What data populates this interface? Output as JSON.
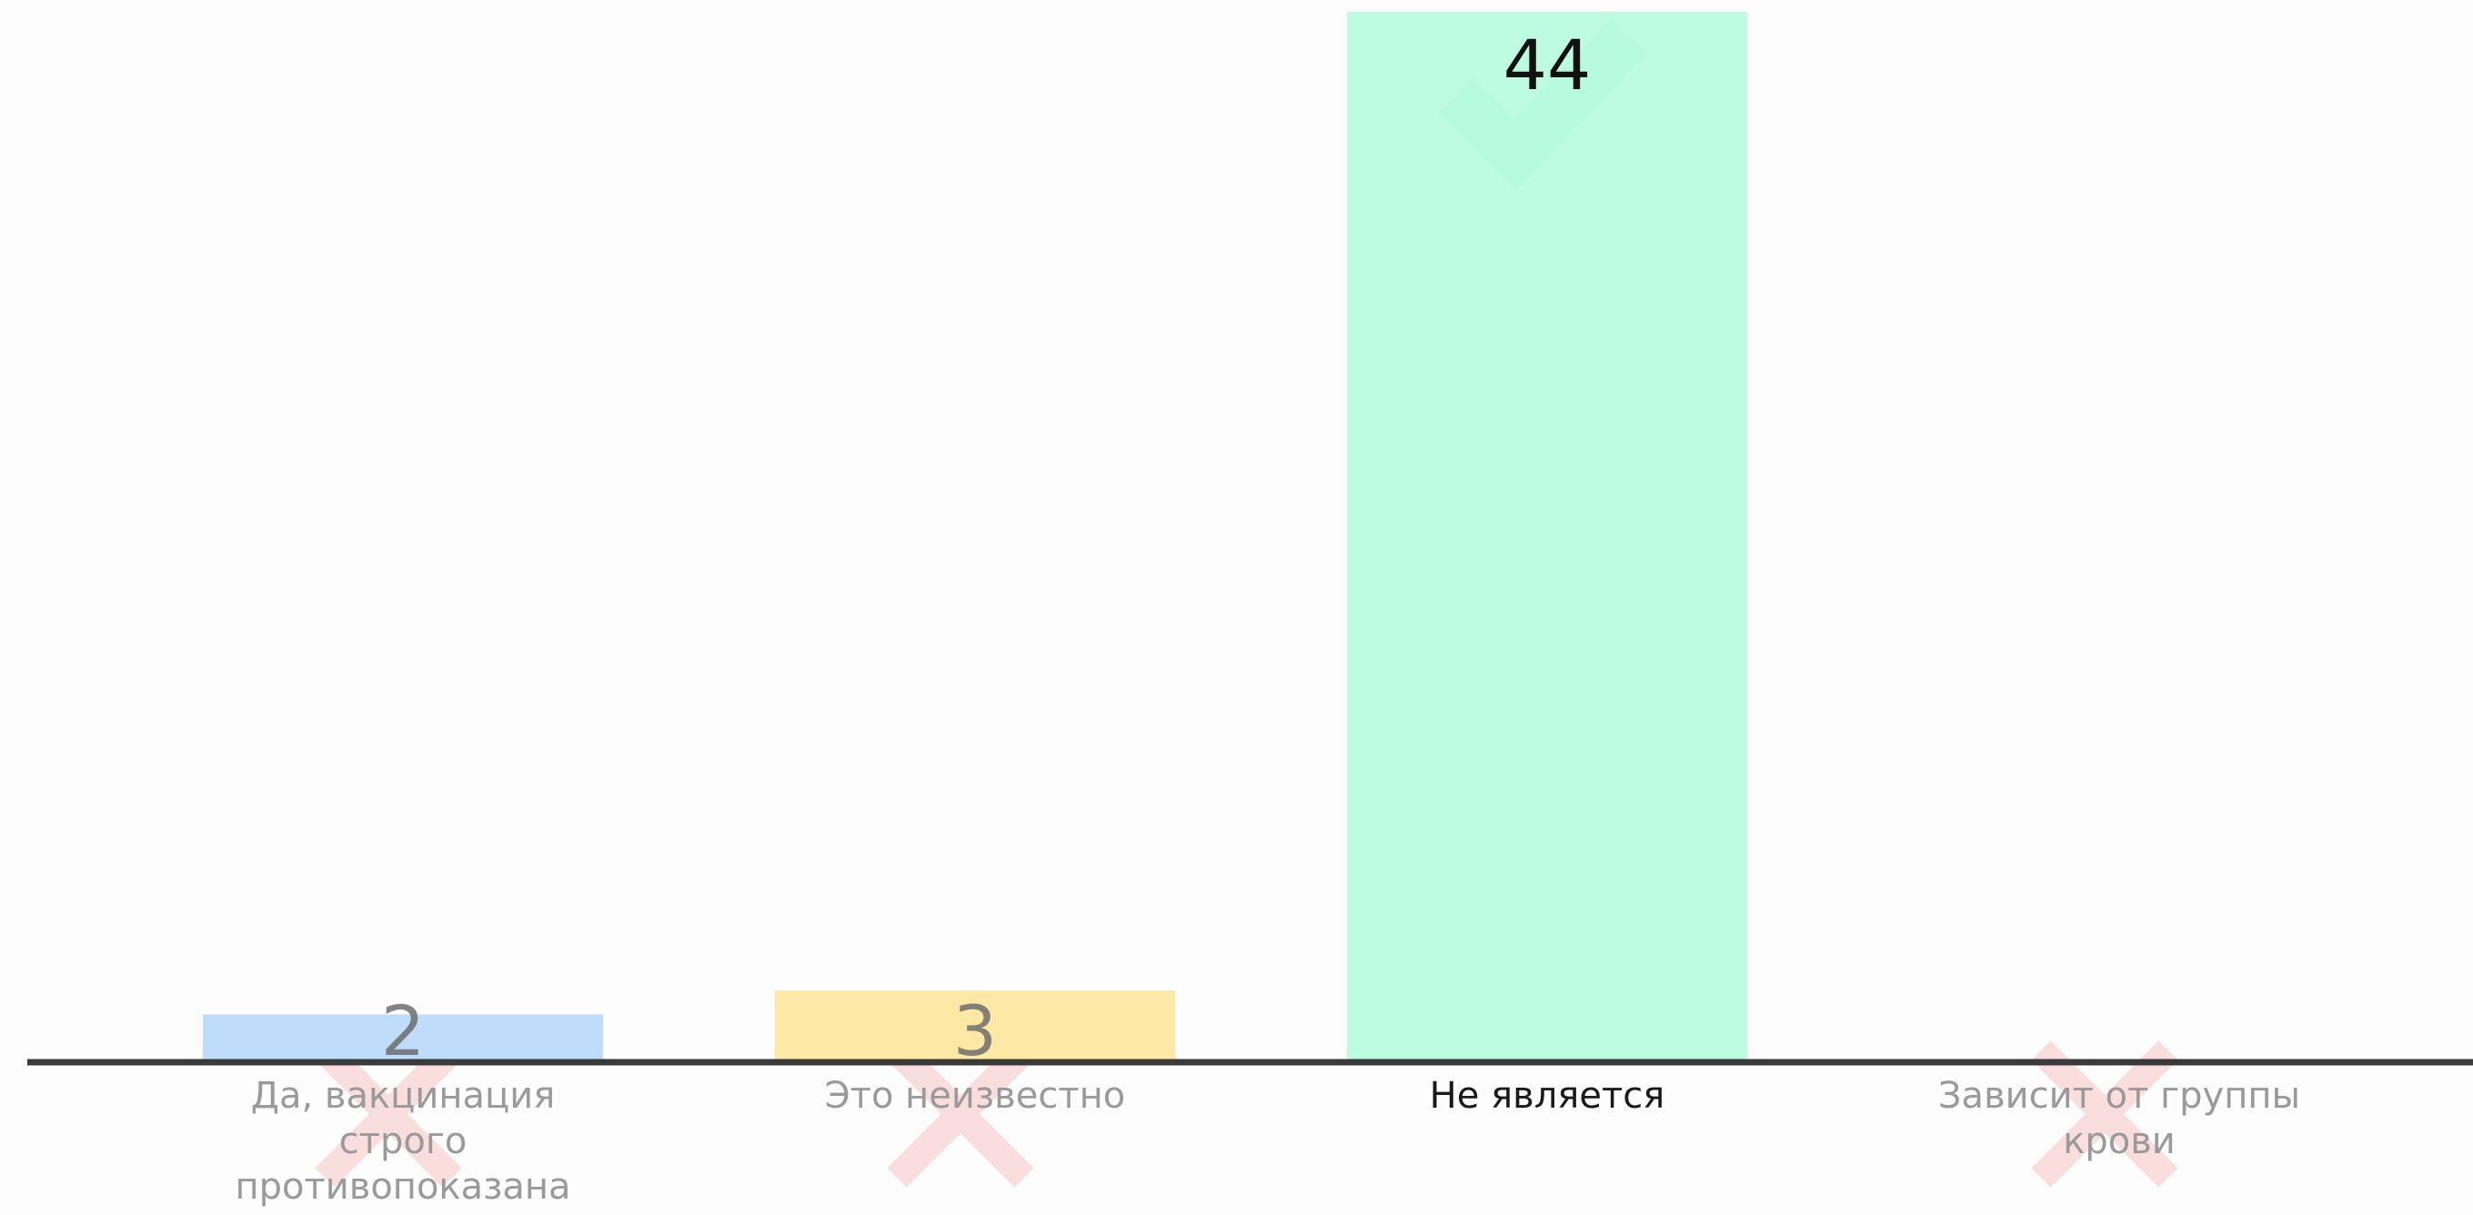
{
  "chart_data": {
    "type": "bar",
    "title": "",
    "xlabel": "",
    "ylabel": "",
    "ylim": [
      0,
      44
    ],
    "grid": false,
    "legend": "none",
    "categories": [
      "Да, вакцинация строго противопоказана",
      "Это неизвестно",
      "Не является",
      "Зависит от группы крови"
    ],
    "category_lines": [
      [
        "Да, вакцинация",
        "строго",
        "противопоказана"
      ],
      [
        "Это неизвестно"
      ],
      [
        "Не является"
      ],
      [
        "Зависит от группы",
        "крови"
      ]
    ],
    "values": [
      2,
      3,
      44,
      0
    ],
    "data_labels": [
      "2",
      "3",
      "44",
      ""
    ],
    "bar_colors": [
      "#bfdcfb",
      "#fee8a6",
      "#b3fcdc",
      "#fdfdfd"
    ],
    "marks": [
      "cross",
      "cross",
      "check",
      "cross"
    ],
    "correct_index": 2,
    "colors": {
      "background": "#fdfdfd",
      "axis": "#3a3a3a",
      "label_active": "#1a1a1a",
      "label_inactive": "#9a9a9a",
      "value_active": "#111111",
      "value_inactive": "#6e6e6e",
      "cross_mark": "#f7c5c5",
      "check_mark": "#8ff0c6"
    }
  }
}
